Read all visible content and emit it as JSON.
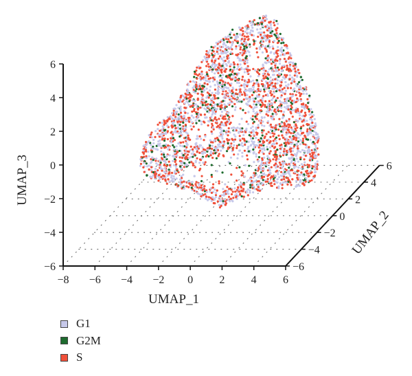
{
  "chart_data": {
    "type": "scatter",
    "projection": "3d",
    "axes": {
      "x": {
        "label": "UMAP_1",
        "range": [
          -8,
          6
        ],
        "ticks": [
          -8,
          -6,
          -4,
          -2,
          0,
          2,
          4,
          6
        ]
      },
      "y": {
        "label": "UMAP_2",
        "range": [
          -6,
          6
        ],
        "ticks": [
          -6,
          -4,
          -2,
          0,
          2,
          4,
          6
        ]
      },
      "z": {
        "label": "UMAP_3",
        "range": [
          -6,
          6
        ],
        "ticks": [
          -6,
          -4,
          -2,
          0,
          2,
          4,
          6
        ]
      }
    },
    "grid": "dotted floor grid",
    "legend_position": "bottom-left",
    "series": [
      {
        "name": "G1",
        "color": "#c7c9ea"
      },
      {
        "name": "G2M",
        "color": "#1e6b2e"
      },
      {
        "name": "S",
        "color": "#f0503a"
      }
    ]
  }
}
